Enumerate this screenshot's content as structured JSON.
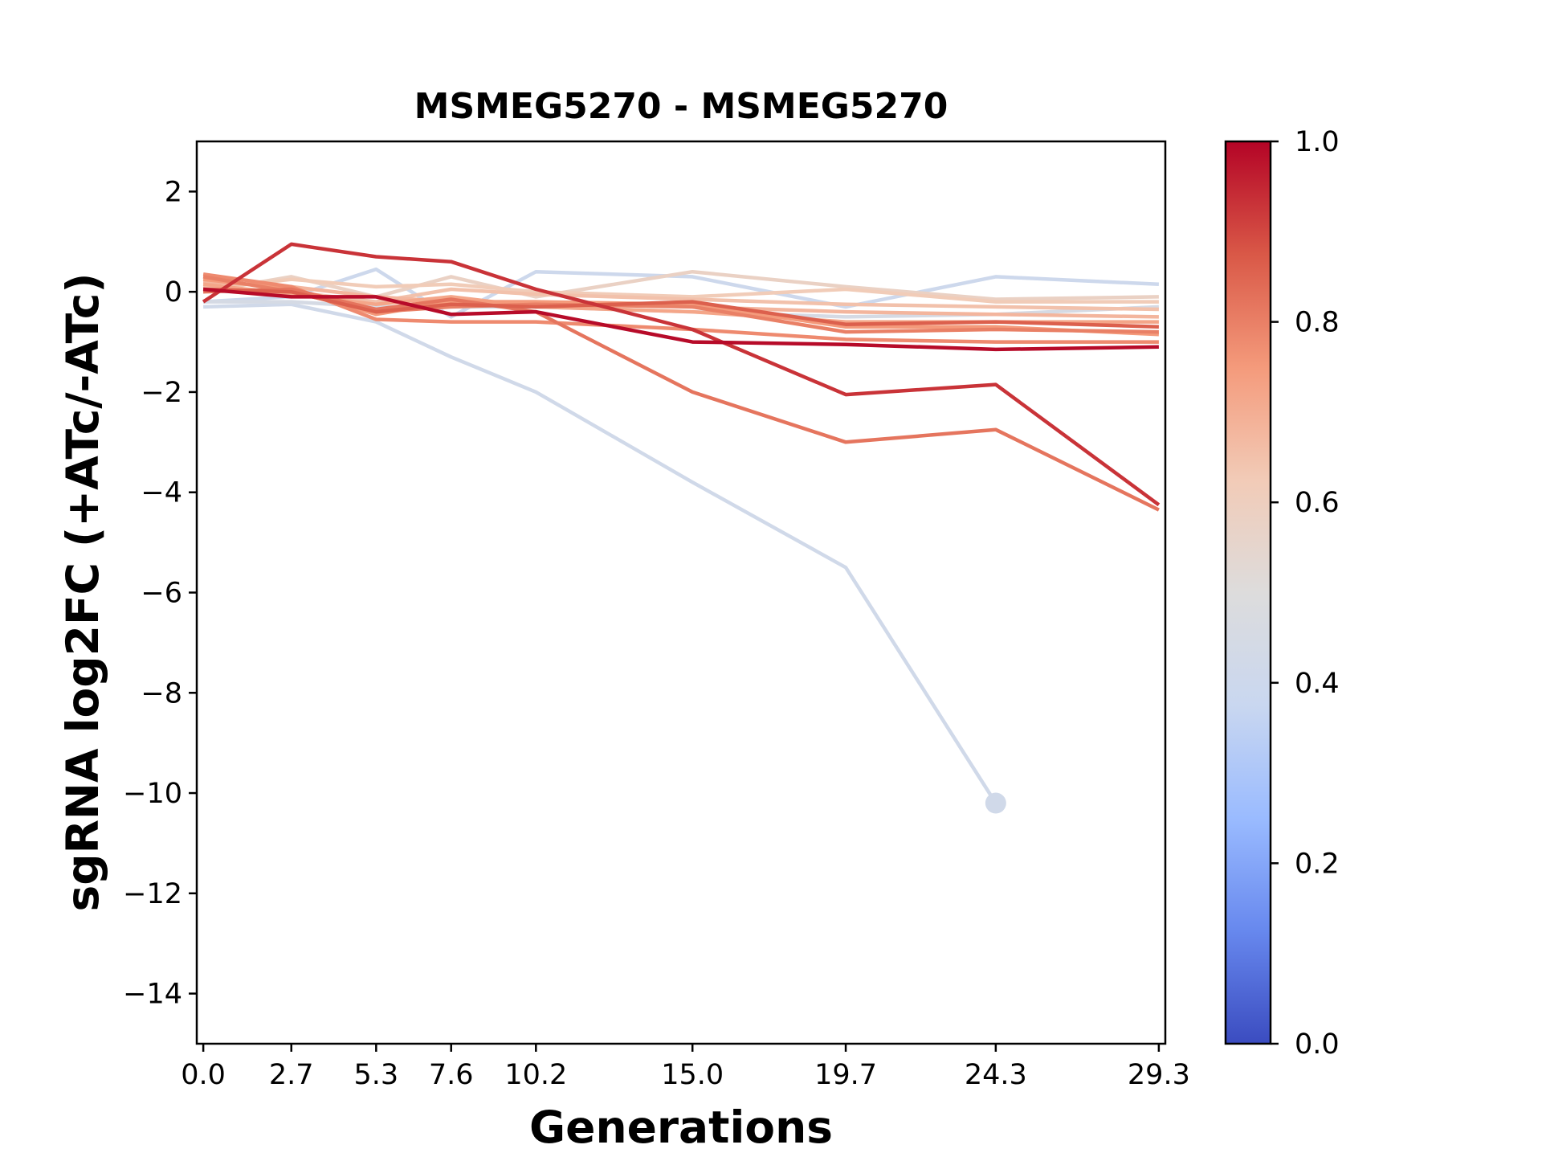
{
  "chart_data": {
    "type": "line",
    "title": "MSMEG5270 - MSMEG5270",
    "xlabel": "Generations",
    "ylabel": "sgRNA log2FC (+ATc/-ATc)",
    "x": [
      0.0,
      2.7,
      5.3,
      7.6,
      10.2,
      15.0,
      19.7,
      24.3,
      29.3
    ],
    "x_tick_labels": [
      "0.0",
      "2.7",
      "5.3",
      "7.6",
      "10.2",
      "15.0",
      "19.7",
      "24.3",
      "29.3"
    ],
    "xlim": [
      -0.2,
      29.5
    ],
    "ylim": [
      -15,
      3
    ],
    "y_ticks": [
      2,
      0,
      -2,
      -4,
      -6,
      -8,
      -10,
      -12,
      -14
    ],
    "y_tick_labels": [
      "2",
      "0",
      "−2",
      "−4",
      "−6",
      "−8",
      "−10",
      "−12",
      "−14"
    ],
    "colorbar": {
      "range": [
        0.0,
        1.0
      ],
      "ticks": [
        0.0,
        0.2,
        0.4,
        0.6,
        0.8,
        1.0
      ],
      "tick_labels": [
        "0.0",
        "0.2",
        "0.4",
        "0.6",
        "0.8",
        "1.0"
      ],
      "colormap": "coolwarm",
      "stops": [
        "#3b4cc0",
        "#6788ee",
        "#9abbff",
        "#c9d7f0",
        "#dddcdc",
        "#f2cbb7",
        "#f49a7b",
        "#d95847",
        "#b40426"
      ]
    },
    "series": [
      {
        "color_value": 0.42,
        "values": [
          -0.3,
          -0.25,
          -0.6,
          -1.3,
          -2.0,
          -3.8,
          -5.5,
          -10.2,
          null
        ],
        "end_marker": true
      },
      {
        "color_value": 0.4,
        "values": [
          -0.2,
          -0.1,
          0.45,
          -0.5,
          0.4,
          0.3,
          -0.3,
          0.3,
          0.15
        ]
      },
      {
        "color_value": 0.45,
        "values": [
          -0.2,
          -0.2,
          -0.3,
          -0.3,
          -0.3,
          -0.4,
          -0.5,
          -0.45,
          -0.3
        ]
      },
      {
        "color_value": 0.58,
        "values": [
          0.0,
          0.3,
          -0.1,
          0.3,
          -0.1,
          0.4,
          0.1,
          -0.15,
          -0.1
        ]
      },
      {
        "color_value": 0.62,
        "values": [
          0.05,
          0.25,
          0.1,
          0.15,
          0.0,
          -0.1,
          0.05,
          -0.2,
          -0.2
        ]
      },
      {
        "color_value": 0.65,
        "values": [
          0.1,
          0.0,
          -0.2,
          0.05,
          -0.05,
          -0.15,
          -0.25,
          -0.3,
          -0.35
        ]
      },
      {
        "color_value": 0.68,
        "values": [
          0.2,
          0.1,
          -0.1,
          -0.2,
          -0.2,
          -0.3,
          -0.4,
          -0.45,
          -0.5
        ]
      },
      {
        "color_value": 0.72,
        "values": [
          0.15,
          -0.05,
          -0.25,
          -0.1,
          -0.3,
          -0.4,
          -0.6,
          -0.6,
          -0.6
        ]
      },
      {
        "color_value": 0.75,
        "values": [
          0.25,
          0.05,
          -0.45,
          -0.2,
          -0.2,
          -0.25,
          -0.7,
          -0.7,
          -0.85
        ]
      },
      {
        "color_value": 0.78,
        "values": [
          0.35,
          0.1,
          -0.55,
          -0.6,
          -0.6,
          -0.75,
          -0.95,
          -1.0,
          -1.0
        ]
      },
      {
        "color_value": 0.8,
        "values": [
          0.3,
          0.0,
          -0.4,
          -0.3,
          -0.25,
          -0.3,
          -0.8,
          -0.75,
          -0.8
        ]
      },
      {
        "color_value": 0.82,
        "values": [
          0.0,
          0.05,
          -0.35,
          -0.15,
          -0.4,
          -2.0,
          -3.0,
          -2.75,
          -4.35
        ]
      },
      {
        "color_value": 0.86,
        "values": [
          0.05,
          0.0,
          -0.4,
          -0.25,
          -0.3,
          -0.2,
          -0.65,
          -0.6,
          -0.7
        ]
      },
      {
        "color_value": 0.93,
        "values": [
          -0.2,
          0.95,
          0.7,
          0.6,
          0.05,
          -0.75,
          -2.05,
          -1.85,
          -4.25
        ]
      },
      {
        "color_value": 0.99,
        "values": [
          0.05,
          -0.1,
          -0.1,
          -0.45,
          -0.4,
          -1.0,
          -1.05,
          -1.15,
          -1.1
        ]
      }
    ]
  }
}
